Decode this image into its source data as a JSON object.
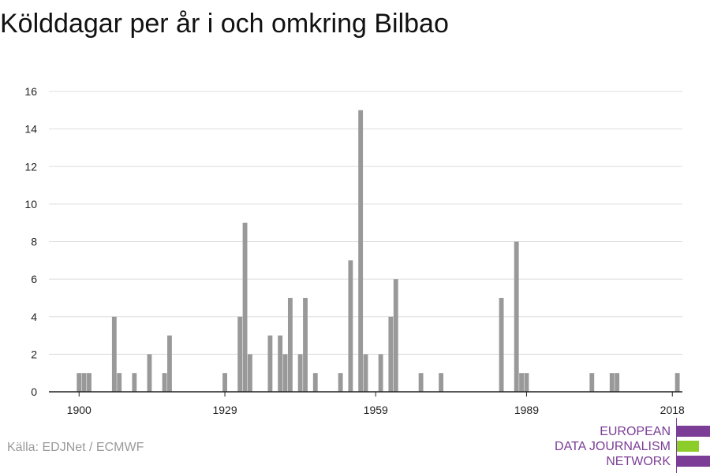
{
  "chart_data": {
    "type": "bar",
    "title": "Kölddagar per år i och omkring Bilbao",
    "xlabel": "",
    "ylabel": "",
    "x_ticks": [
      1900,
      1929,
      1959,
      1989,
      2018
    ],
    "y_ticks": [
      0,
      2,
      4,
      6,
      8,
      10,
      12,
      14,
      16
    ],
    "xlim": [
      1894,
      2020
    ],
    "ylim": [
      0,
      16
    ],
    "grid": true,
    "bar_color": "#999999",
    "x": [
      1900,
      1901,
      1902,
      1907,
      1908,
      1911,
      1914,
      1917,
      1918,
      1929,
      1932,
      1933,
      1934,
      1938,
      1940,
      1941,
      1942,
      1944,
      1945,
      1947,
      1952,
      1954,
      1956,
      1957,
      1960,
      1962,
      1963,
      1968,
      1972,
      1984,
      1987,
      1988,
      1989,
      2002,
      2006,
      2007,
      2019
    ],
    "values": [
      1,
      1,
      1,
      4,
      1,
      1,
      2,
      1,
      3,
      1,
      4,
      9,
      2,
      3,
      3,
      2,
      5,
      2,
      5,
      1,
      1,
      7,
      15,
      2,
      2,
      4,
      6,
      1,
      1,
      5,
      8,
      1,
      1,
      1,
      1,
      1,
      1
    ]
  },
  "source": "Källa: EDJNet / ECMWF",
  "logo": {
    "lines": [
      "EUROPEAN",
      "DATA JOURNALISM",
      "NETWORK"
    ],
    "colors": {
      "purple": "#7b3d96",
      "green": "#8ccd2a"
    }
  }
}
